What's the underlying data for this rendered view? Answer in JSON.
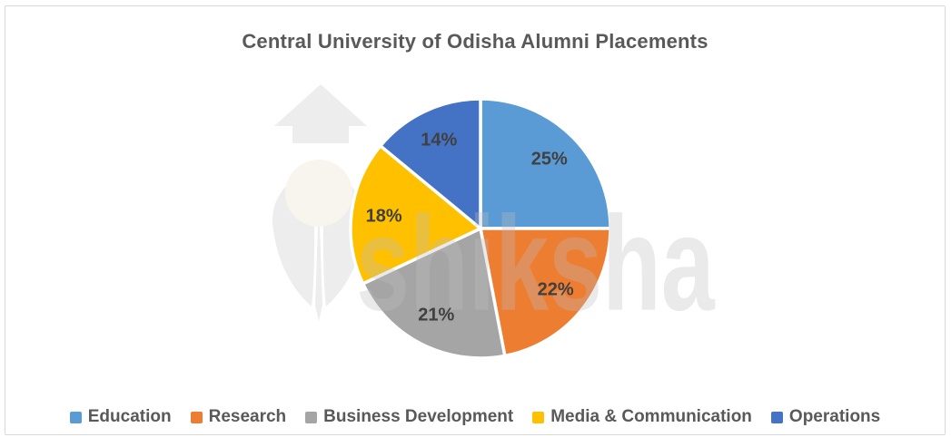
{
  "chart_data": {
    "type": "pie",
    "title": "Central University of Odisha Alumni Placements",
    "start_angle_deg": 0,
    "direction": "clockwise",
    "data_label_style": "percent, inside",
    "legend_position": "bottom",
    "slices": [
      {
        "label": "Education",
        "value": 25,
        "display": "25%",
        "color": "#5B9BD5"
      },
      {
        "label": "Research",
        "value": 22,
        "display": "22%",
        "color": "#ED7D31"
      },
      {
        "label": "Business Development",
        "value": 21,
        "display": "21%",
        "color": "#A5A5A5"
      },
      {
        "label": "Media & Communication",
        "value": 18,
        "display": "18%",
        "color": "#FFC000"
      },
      {
        "label": "Operations",
        "value": 14,
        "display": "14%",
        "color": "#4472C4"
      }
    ],
    "slice_border_color": "#FFFFFF",
    "title_color": "#595959",
    "label_color": "#404040"
  },
  "watermark": {
    "text": "shiksha"
  }
}
